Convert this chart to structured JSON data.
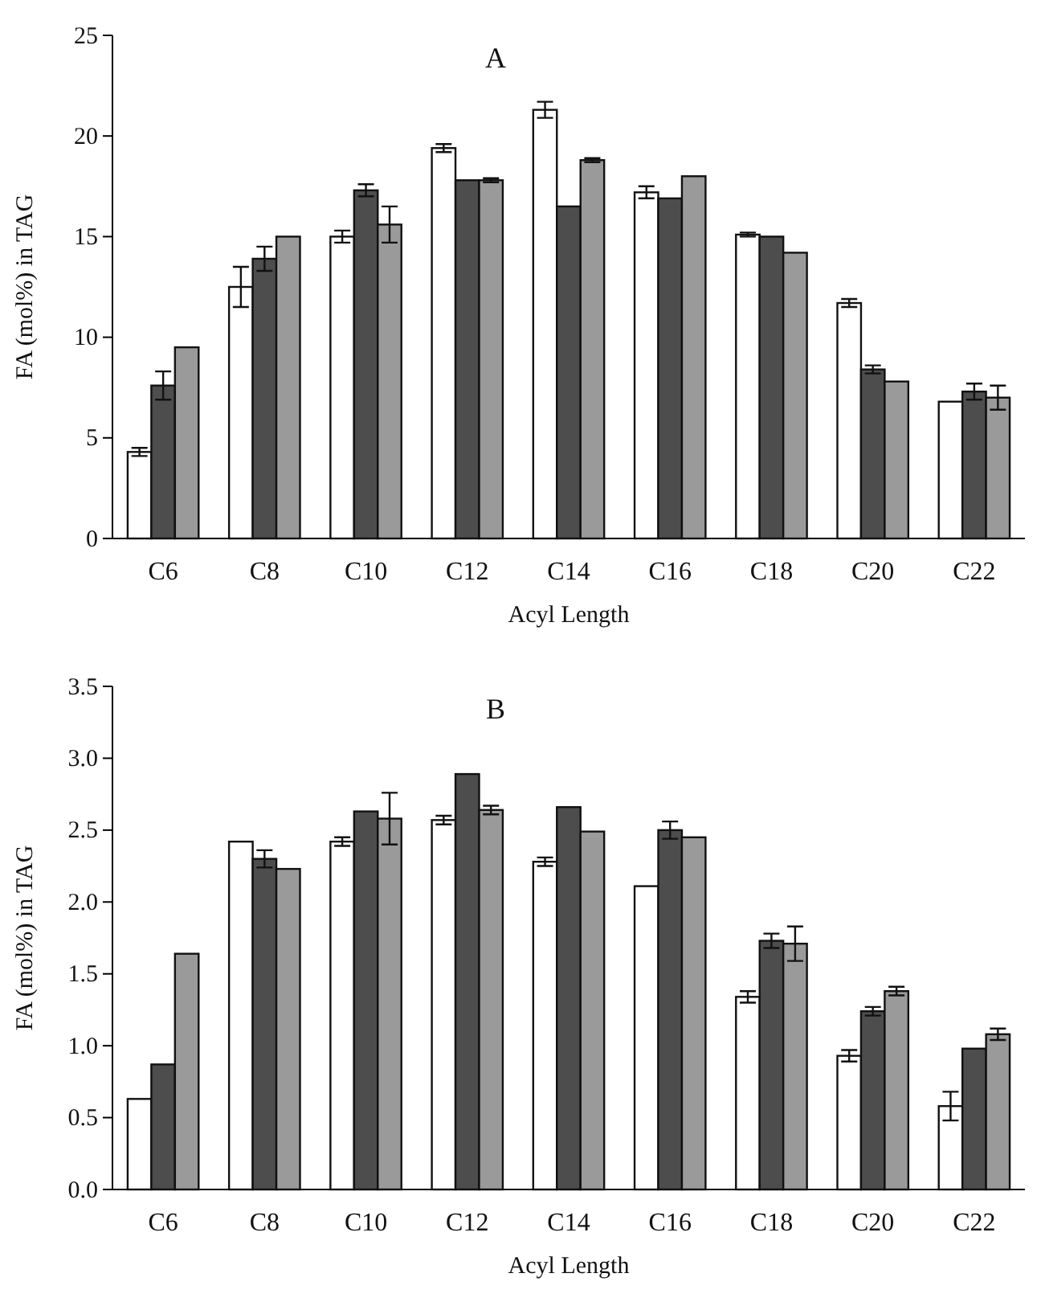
{
  "chart_data": [
    {
      "type": "bar",
      "title": "A",
      "xlabel": "Acyl Length",
      "ylabel": "FA (mol%) in TAG",
      "categories": [
        "C6",
        "C8",
        "C10",
        "C12",
        "C14",
        "C16",
        "C18",
        "C20",
        "C22"
      ],
      "ylim": [
        0,
        25
      ],
      "yticks": [
        0,
        5,
        10,
        15,
        20,
        25
      ],
      "series": [
        {
          "color": "#ffffff",
          "values": [
            4.3,
            12.5,
            15.0,
            19.4,
            21.3,
            17.2,
            15.1,
            11.7,
            6.8
          ],
          "errors": [
            0.2,
            1.0,
            0.3,
            0.2,
            0.4,
            0.3,
            0.1,
            0.2,
            null
          ]
        },
        {
          "color": "#4d4d4d",
          "values": [
            7.6,
            13.9,
            17.3,
            17.8,
            16.5,
            16.9,
            15.0,
            8.4,
            7.3
          ],
          "errors": [
            0.7,
            0.6,
            0.3,
            null,
            null,
            null,
            null,
            0.2,
            0.4
          ]
        },
        {
          "color": "#9a9a9a",
          "values": [
            9.5,
            15.0,
            15.6,
            17.8,
            18.8,
            18.0,
            14.2,
            7.8,
            7.0
          ],
          "errors": [
            null,
            null,
            0.9,
            0.1,
            0.1,
            null,
            null,
            null,
            0.6
          ]
        }
      ]
    },
    {
      "type": "bar",
      "title": "B",
      "xlabel": "Acyl Length",
      "ylabel": "FA (mol%) in TAG",
      "categories": [
        "C6",
        "C8",
        "C10",
        "C12",
        "C14",
        "C16",
        "C18",
        "C20",
        "C22"
      ],
      "ylim": [
        0,
        3.5
      ],
      "yticks": [
        {
          "value": 0,
          "label": "0.0"
        },
        {
          "value": 0.5,
          "label": "0.5"
        },
        {
          "value": 1,
          "label": "1.0"
        },
        {
          "value": 1.5,
          "label": "1.5"
        },
        {
          "value": 2,
          "label": "2.0"
        },
        {
          "value": 2.5,
          "label": "2.5"
        },
        {
          "value": 3,
          "label": "3.0"
        },
        {
          "value": 3.5,
          "label": "3.5"
        }
      ],
      "series": [
        {
          "color": "#ffffff",
          "values": [
            0.63,
            2.42,
            2.42,
            2.57,
            2.28,
            2.11,
            1.34,
            0.93,
            0.58
          ],
          "errors": [
            null,
            null,
            0.03,
            0.03,
            0.03,
            null,
            0.04,
            0.04,
            0.1
          ]
        },
        {
          "color": "#4d4d4d",
          "values": [
            0.87,
            2.3,
            2.63,
            2.89,
            2.66,
            2.5,
            1.73,
            1.24,
            0.98
          ],
          "errors": [
            null,
            0.06,
            null,
            null,
            null,
            0.06,
            0.05,
            0.03,
            null
          ]
        },
        {
          "color": "#9a9a9a",
          "values": [
            1.64,
            2.23,
            2.58,
            2.64,
            2.49,
            2.45,
            1.71,
            1.38,
            1.08
          ],
          "errors": [
            null,
            null,
            0.18,
            0.03,
            null,
            null,
            0.12,
            0.03,
            0.04
          ]
        }
      ]
    }
  ]
}
